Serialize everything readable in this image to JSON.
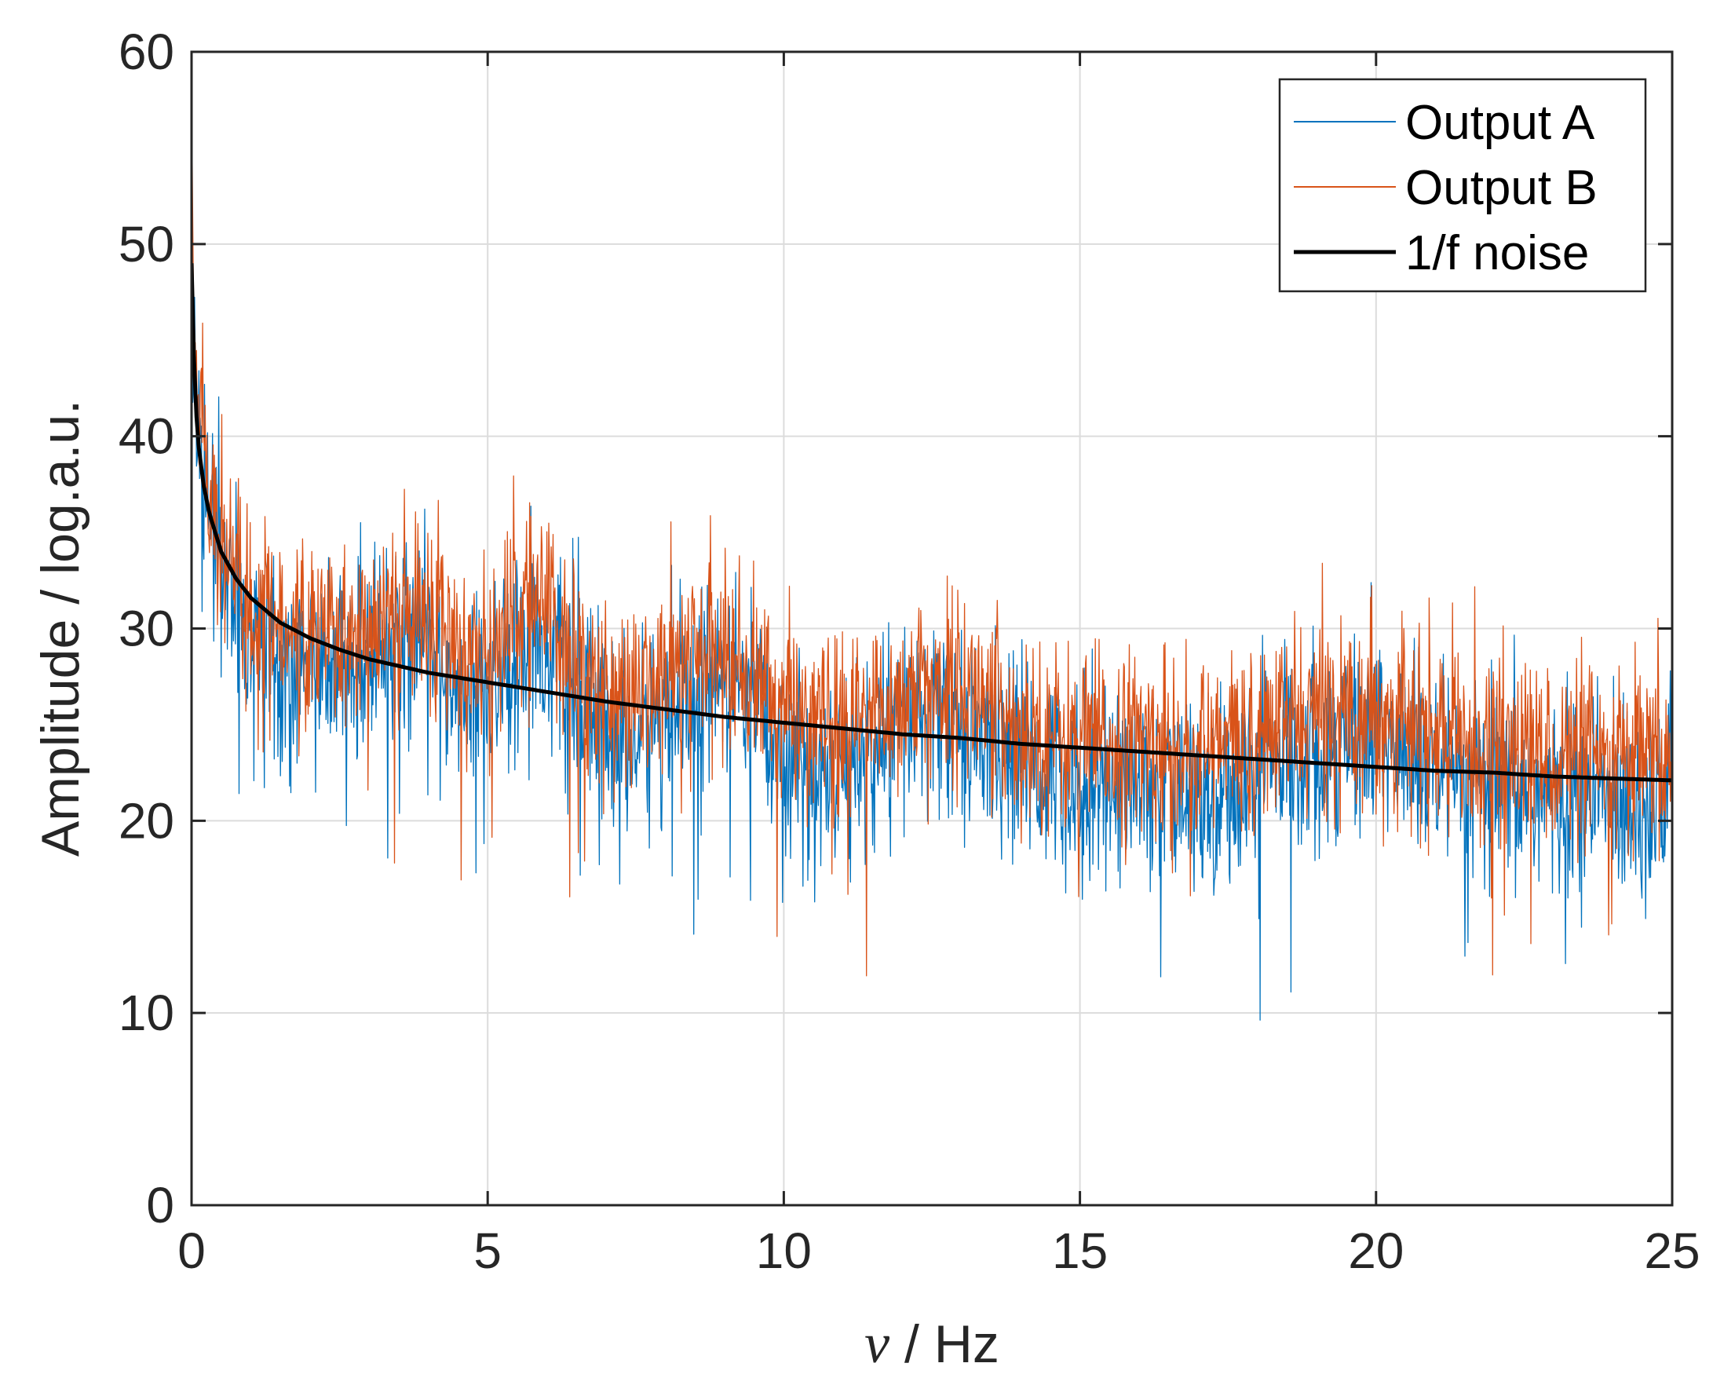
{
  "chart_data": {
    "type": "line",
    "title": "",
    "xlabel": {
      "symbol": "ν",
      "rest": " / Hz"
    },
    "ylabel": "Amplitude / log.a.u.",
    "xlim": [
      0,
      25
    ],
    "ylim": [
      0,
      60
    ],
    "x_ticks": [
      "0",
      "5",
      "10",
      "15",
      "20",
      "25"
    ],
    "y_ticks": [
      "0",
      "10",
      "20",
      "30",
      "40",
      "50",
      "60"
    ],
    "grid": true,
    "legend_position": "top-right",
    "series": [
      {
        "name": "Output A",
        "color": "#0072BD",
        "style": "noisy",
        "x": [
          0.0,
          0.05,
          0.1,
          0.2,
          0.3,
          0.5,
          0.75,
          1.0,
          1.5,
          2.0,
          2.5,
          3.0,
          3.5,
          3.8,
          4.2,
          4.6,
          5.0,
          5.5,
          5.9,
          6.4,
          7.0,
          7.5,
          8.0,
          8.5,
          9.0,
          9.5,
          10.0,
          10.5,
          11.0,
          11.5,
          12.0,
          12.5,
          13.0,
          13.5,
          14.0,
          14.5,
          15.0,
          15.5,
          16.0,
          16.5,
          17.0,
          17.5,
          18.0,
          18.5,
          19.0,
          19.5,
          20.0,
          20.5,
          21.0,
          21.5,
          22.0,
          22.5,
          23.0,
          23.5,
          24.0,
          24.5,
          25.0
        ],
        "mean": [
          50.0,
          45.0,
          41.5,
          38.5,
          36.5,
          34.0,
          31.5,
          30.0,
          28.5,
          28.0,
          27.8,
          28.5,
          29.5,
          30.0,
          28.0,
          26.0,
          27.0,
          29.0,
          29.5,
          27.0,
          24.5,
          24.0,
          26.0,
          27.0,
          27.0,
          25.5,
          24.0,
          22.5,
          22.0,
          23.5,
          25.0,
          25.5,
          25.0,
          24.0,
          23.0,
          22.5,
          22.0,
          22.0,
          22.0,
          21.5,
          21.0,
          21.5,
          22.5,
          23.5,
          24.0,
          24.5,
          24.5,
          23.5,
          22.5,
          22.0,
          21.5,
          21.5,
          21.0,
          21.5,
          21.0,
          21.0,
          21.0
        ],
        "noise": 2.6
      },
      {
        "name": "Output B",
        "color": "#D95319",
        "style": "noisy",
        "x": [
          0.0,
          0.05,
          0.1,
          0.2,
          0.3,
          0.5,
          0.75,
          1.0,
          1.5,
          2.0,
          2.5,
          3.0,
          3.5,
          3.8,
          4.2,
          4.6,
          5.0,
          5.5,
          5.9,
          6.4,
          7.0,
          7.5,
          8.0,
          8.5,
          9.0,
          9.5,
          10.0,
          10.5,
          11.0,
          11.5,
          12.0,
          12.5,
          13.0,
          13.5,
          14.0,
          14.5,
          15.0,
          15.5,
          16.0,
          16.5,
          17.0,
          17.5,
          18.0,
          18.5,
          19.0,
          19.5,
          20.0,
          20.5,
          21.0,
          21.5,
          22.0,
          22.5,
          23.0,
          23.5,
          24.0,
          24.5,
          25.0
        ],
        "mean": [
          56.0,
          47.0,
          43.0,
          40.0,
          38.0,
          35.5,
          33.0,
          31.5,
          30.0,
          29.5,
          29.0,
          29.5,
          31.0,
          31.5,
          30.0,
          28.5,
          29.0,
          31.0,
          31.0,
          29.0,
          26.5,
          26.0,
          27.5,
          28.5,
          28.5,
          27.5,
          26.0,
          25.0,
          24.5,
          25.5,
          26.5,
          27.0,
          27.0,
          26.0,
          25.0,
          24.5,
          24.0,
          24.0,
          24.0,
          24.0,
          23.5,
          24.0,
          24.5,
          25.0,
          25.5,
          26.0,
          26.0,
          25.0,
          24.5,
          24.0,
          24.0,
          23.5,
          23.5,
          23.0,
          23.0,
          23.0,
          23.0
        ],
        "noise": 2.4
      },
      {
        "name": "1/f noise",
        "color": "#000000",
        "style": "smooth",
        "x": [
          0.0,
          0.05,
          0.1,
          0.2,
          0.3,
          0.5,
          0.75,
          1.0,
          1.5,
          2.0,
          2.5,
          3.0,
          4.0,
          5.0,
          6.0,
          7.0,
          8.0,
          9.0,
          10.0,
          11.0,
          12.0,
          13.0,
          14.0,
          15.0,
          16.0,
          17.0,
          18.0,
          19.0,
          20.0,
          21.0,
          22.0,
          23.0,
          24.0,
          25.0
        ],
        "y": [
          49.0,
          43.0,
          40.0,
          37.5,
          36.0,
          34.0,
          32.6,
          31.6,
          30.3,
          29.5,
          28.9,
          28.4,
          27.7,
          27.2,
          26.7,
          26.2,
          25.8,
          25.4,
          25.1,
          24.8,
          24.5,
          24.3,
          24.0,
          23.8,
          23.6,
          23.4,
          23.2,
          23.0,
          22.8,
          22.6,
          22.5,
          22.3,
          22.2,
          22.1
        ]
      }
    ]
  }
}
